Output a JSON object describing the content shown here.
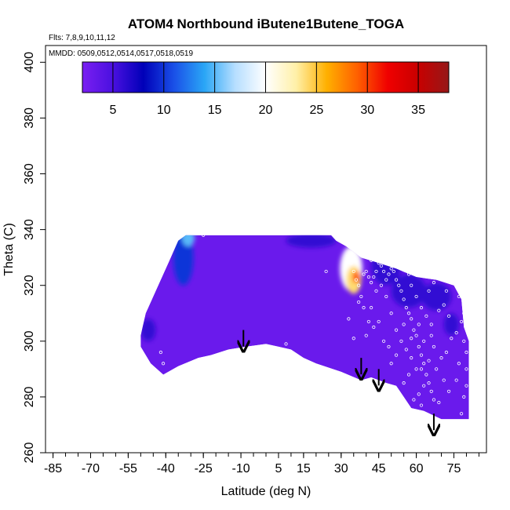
{
  "chart_data": {
    "type": "heatmap",
    "title": "ATOM4 Northbound iButene1Butene_TOGA",
    "flights_label": "Flts: 7,8,9,10,11,12",
    "dates_label": "MMDD: 0509,0512,0514,0517,0518,0519",
    "xlabel": "Latitude (deg N)",
    "ylabel": "Theta (C)",
    "xlim": [
      -88,
      88
    ],
    "ylim": [
      260,
      406
    ],
    "x_ticks": [
      -85,
      -70,
      -55,
      -40,
      -25,
      -10,
      5,
      15,
      30,
      45,
      60,
      75
    ],
    "x_minor_step": 5,
    "y_ticks": [
      260,
      280,
      300,
      320,
      340,
      360,
      380,
      400
    ],
    "colorbar": {
      "range": [
        2,
        38
      ],
      "ticks": [
        5,
        10,
        15,
        20,
        25,
        30,
        35
      ],
      "colors": [
        "#7a1ff2",
        "#4a10e0",
        "#0000b8",
        "#1a50e8",
        "#2aa6f6",
        "#b6deff",
        "#ffffff",
        "#fff0a8",
        "#ffb000",
        "#ff6000",
        "#f00000",
        "#c80000",
        "#961818"
      ]
    },
    "field_outline": [
      [
        -50,
        302
      ],
      [
        -48,
        310
      ],
      [
        -44,
        318
      ],
      [
        -39,
        328
      ],
      [
        -35,
        336
      ],
      [
        -32,
        338
      ],
      [
        -28,
        338
      ],
      [
        -20,
        338
      ],
      [
        0,
        338
      ],
      [
        10,
        338
      ],
      [
        26,
        338
      ],
      [
        28,
        336
      ],
      [
        32,
        334
      ],
      [
        38,
        330
      ],
      [
        45,
        328
      ],
      [
        52,
        326
      ],
      [
        60,
        323
      ],
      [
        68,
        322
      ],
      [
        75,
        320
      ],
      [
        78,
        315
      ],
      [
        79,
        305
      ],
      [
        81,
        300
      ],
      [
        81,
        272
      ],
      [
        70,
        272
      ],
      [
        63,
        275
      ],
      [
        58,
        276
      ],
      [
        55,
        280
      ],
      [
        52,
        284
      ],
      [
        48,
        285
      ],
      [
        42,
        287
      ],
      [
        38,
        286
      ],
      [
        30,
        289
      ],
      [
        20,
        292
      ],
      [
        15,
        294
      ],
      [
        10,
        297
      ],
      [
        5,
        298
      ],
      [
        0,
        299
      ],
      [
        -8,
        298
      ],
      [
        -15,
        297
      ],
      [
        -22,
        295
      ],
      [
        -27,
        294
      ],
      [
        -35,
        291
      ],
      [
        -41,
        288
      ],
      [
        -46,
        292
      ],
      [
        -50,
        298
      ]
    ],
    "background_value": 3,
    "features": [
      {
        "x": -33,
        "y": 330,
        "rx": 4,
        "ry": 10,
        "value": 10
      },
      {
        "x": -31,
        "y": 337,
        "rx": 2.5,
        "ry": 3,
        "value": 15
      },
      {
        "x": -47,
        "y": 304,
        "rx": 3,
        "ry": 4,
        "value": 6
      },
      {
        "x": 34,
        "y": 326,
        "rx": 4.5,
        "ry": 8,
        "value": 20
      },
      {
        "x": 35,
        "y": 322,
        "rx": 3,
        "ry": 5,
        "value": 24
      },
      {
        "x": 36,
        "y": 323,
        "rx": 1.5,
        "ry": 2.2,
        "value": 29
      },
      {
        "x": 48,
        "y": 327,
        "rx": 6,
        "ry": 7,
        "value": 6
      },
      {
        "x": 57,
        "y": 318,
        "rx": 7,
        "ry": 6,
        "value": 6
      },
      {
        "x": 68,
        "y": 316,
        "rx": 6,
        "ry": 5,
        "value": 6
      },
      {
        "x": 74,
        "y": 306,
        "rx": 3,
        "ry": 4,
        "value": 6
      },
      {
        "x": 18,
        "y": 336,
        "rx": 10,
        "ry": 2.5,
        "value": 6
      }
    ],
    "arrows_x": [
      -9,
      38,
      45,
      67
    ],
    "arrows_y": [
      304,
      294,
      290,
      274
    ],
    "sample_points": [
      [
        -41,
        292
      ],
      [
        -42,
        296
      ],
      [
        -36,
        337
      ],
      [
        -33,
        339
      ],
      [
        -31,
        339
      ],
      [
        -25,
        338
      ],
      [
        30,
        337
      ],
      [
        24,
        325
      ],
      [
        34,
        328
      ],
      [
        35,
        325
      ],
      [
        36,
        322
      ],
      [
        37,
        320
      ],
      [
        38,
        316
      ],
      [
        39,
        312
      ],
      [
        40,
        325
      ],
      [
        41,
        323
      ],
      [
        42,
        321
      ],
      [
        43,
        323
      ],
      [
        44,
        325
      ],
      [
        45,
        328
      ],
      [
        46,
        327
      ],
      [
        47,
        325
      ],
      [
        48,
        322
      ],
      [
        49,
        324
      ],
      [
        50,
        326
      ],
      [
        51,
        325
      ],
      [
        52,
        322
      ],
      [
        53,
        320
      ],
      [
        54,
        318
      ],
      [
        55,
        315
      ],
      [
        56,
        312
      ],
      [
        57,
        310
      ],
      [
        58,
        308
      ],
      [
        59,
        304
      ],
      [
        60,
        302
      ],
      [
        61,
        298
      ],
      [
        62,
        295
      ],
      [
        63,
        292
      ],
      [
        64,
        288
      ],
      [
        65,
        285
      ],
      [
        66,
        282
      ],
      [
        67,
        279
      ],
      [
        60,
        290
      ],
      [
        58,
        294
      ],
      [
        57,
        288
      ],
      [
        55,
        285
      ],
      [
        56,
        297
      ],
      [
        54,
        300
      ],
      [
        52,
        295
      ],
      [
        50,
        310
      ],
      [
        48,
        316
      ],
      [
        46,
        320
      ],
      [
        44,
        318
      ],
      [
        42,
        312
      ],
      [
        35,
        301
      ],
      [
        33,
        308
      ],
      [
        40,
        302
      ],
      [
        43,
        305
      ],
      [
        47,
        300
      ],
      [
        49,
        298
      ],
      [
        61,
        281
      ],
      [
        63,
        284
      ],
      [
        59,
        279
      ],
      [
        62,
        277
      ],
      [
        65,
        293
      ],
      [
        68,
        290
      ],
      [
        70,
        294
      ],
      [
        72,
        296
      ],
      [
        74,
        301
      ],
      [
        76,
        303
      ],
      [
        78,
        307
      ],
      [
        79,
        300
      ],
      [
        73,
        309
      ],
      [
        71,
        313
      ],
      [
        69,
        311
      ],
      [
        66,
        306
      ],
      [
        64,
        309
      ],
      [
        62,
        312
      ],
      [
        65,
        318
      ],
      [
        67,
        321
      ],
      [
        72,
        318
      ],
      [
        75,
        321
      ],
      [
        77,
        316
      ],
      [
        79,
        310
      ],
      [
        80,
        296
      ],
      [
        80,
        290
      ],
      [
        80,
        284
      ],
      [
        79,
        280
      ],
      [
        78,
        274
      ],
      [
        69,
        278
      ],
      [
        60,
        316
      ],
      [
        58,
        320
      ],
      [
        53,
        327
      ],
      [
        57,
        324
      ],
      [
        42,
        329
      ],
      [
        38,
        331
      ],
      [
        44,
        331
      ],
      [
        39,
        324
      ],
      [
        46,
        330
      ],
      [
        37,
        314
      ],
      [
        41,
        307
      ],
      [
        45,
        307
      ],
      [
        8,
        299
      ],
      [
        -46,
        289
      ],
      [
        -39,
        334
      ],
      [
        -34,
        341
      ],
      [
        -37,
        338
      ],
      [
        55,
        306
      ],
      [
        61,
        306
      ],
      [
        66,
        302
      ],
      [
        63,
        300
      ],
      [
        67,
        298
      ],
      [
        71,
        286
      ],
      [
        73,
        282
      ],
      [
        76,
        286
      ],
      [
        77,
        292
      ],
      [
        52,
        304
      ],
      [
        50,
        292
      ],
      [
        58,
        301
      ],
      [
        62,
        290
      ]
    ]
  }
}
